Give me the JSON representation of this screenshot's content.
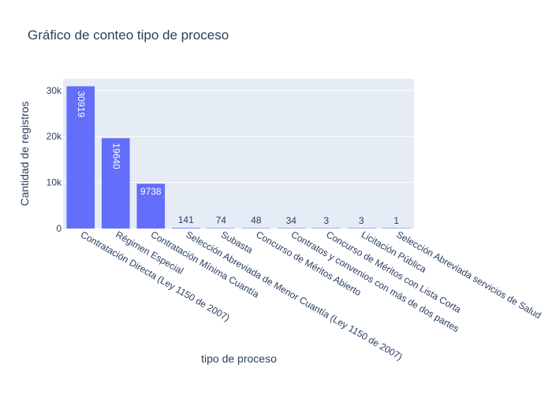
{
  "chart_data": {
    "type": "bar",
    "title": "Gráfico de conteo tipo de proceso",
    "xlabel": "tipo de proceso",
    "ylabel": "Cantidad de registros",
    "categories": [
      "Contratación Directa (Ley 1150 de 2007)",
      "Régimen Especial",
      "Contratación Mínima Cuantía",
      "Selección Abreviada de Menor Cuantía (Ley 1150 de 2007)",
      "Subasta",
      "Concurso de Méritos Abierto",
      "Contratos y convenios con más de dos partes",
      "Concurso de Méritos con Lista Corta",
      "Licitación Pública",
      "Selección Abreviada servicios de Salud"
    ],
    "values": [
      30919,
      19640,
      9738,
      141,
      74,
      48,
      34,
      3,
      3,
      1
    ],
    "ylim": [
      0,
      32546
    ],
    "yticks": [
      0,
      10000,
      20000,
      30000
    ],
    "ytick_labels": [
      "0",
      "10k",
      "20k",
      "30k"
    ],
    "grid": true,
    "bar_color": "#636efa",
    "plot_bg": "#e5ecf6"
  }
}
